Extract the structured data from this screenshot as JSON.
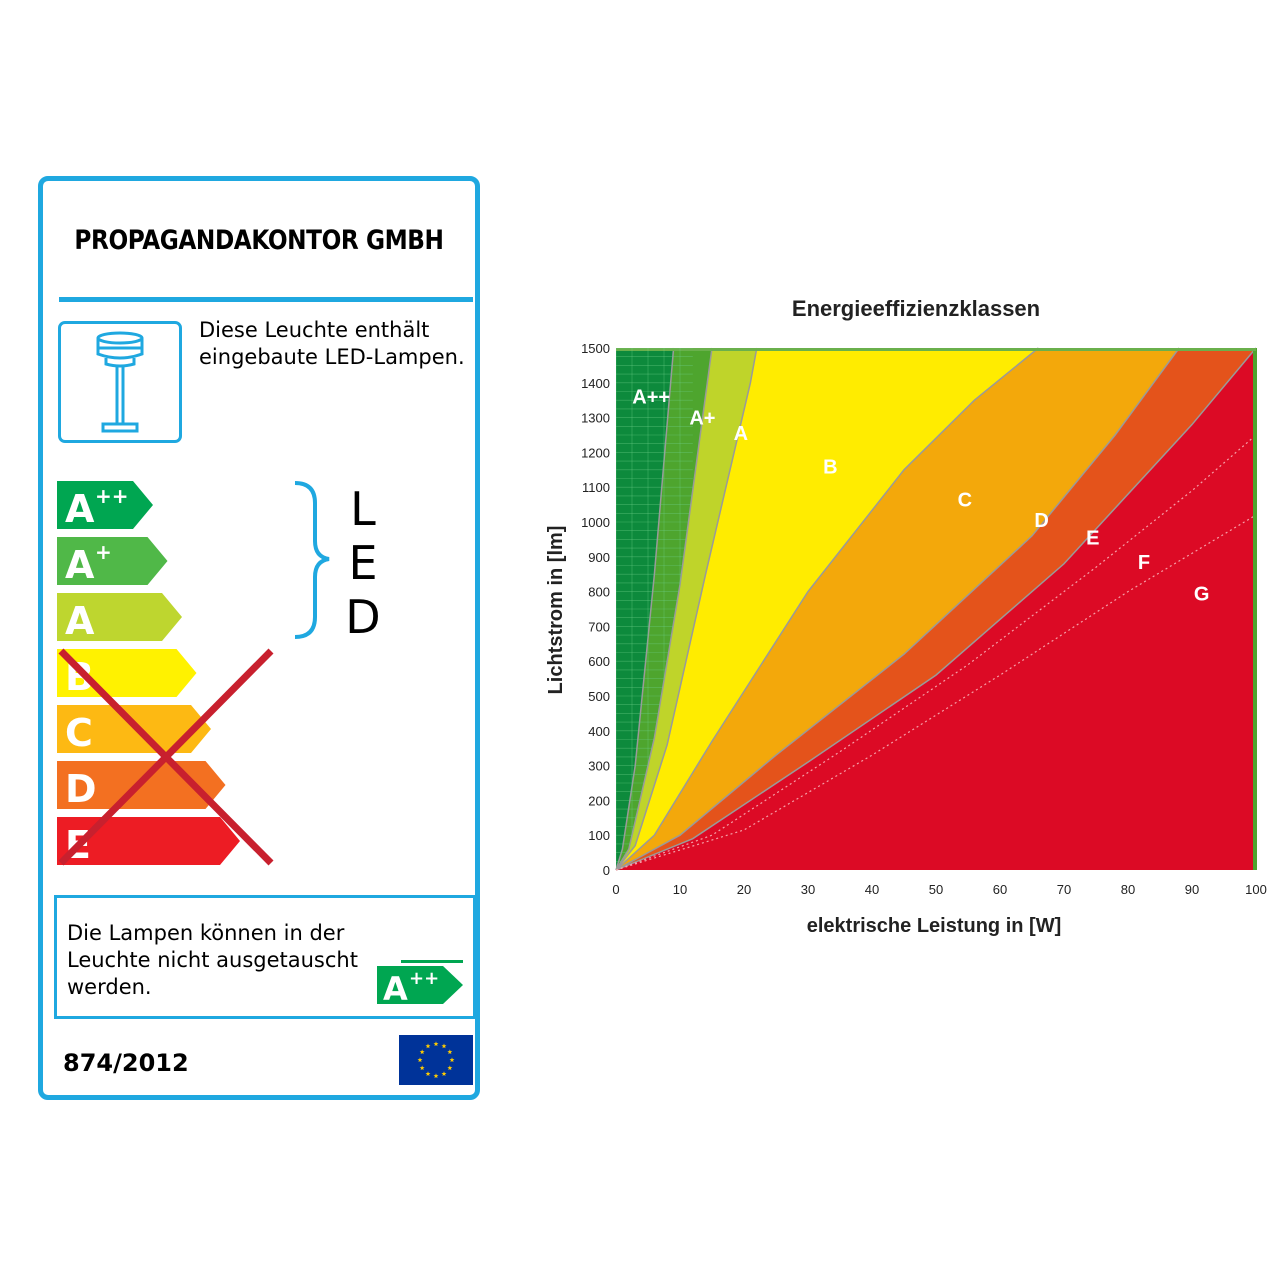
{
  "label": {
    "manufacturer": "PROPAGANDAKONTOR GMBH",
    "lamp_text_line1": "Diese Leuchte enthält",
    "lamp_text_line2": "eingebaute LED-Lampen.",
    "led_label": [
      "L",
      "E",
      "D"
    ],
    "classes": [
      {
        "letter": "A",
        "sup": "++",
        "color": "#00a651",
        "crossed": false
      },
      {
        "letter": "A",
        "sup": "+",
        "color": "#50b848",
        "crossed": false
      },
      {
        "letter": "A",
        "sup": "",
        "color": "#bed62f",
        "crossed": false
      },
      {
        "letter": "B",
        "sup": "",
        "color": "#fff200",
        "crossed": true
      },
      {
        "letter": "C",
        "sup": "",
        "color": "#fdb913",
        "crossed": true
      },
      {
        "letter": "D",
        "sup": "",
        "color": "#f37021",
        "crossed": true
      },
      {
        "letter": "E",
        "sup": "",
        "color": "#ed1c24",
        "crossed": true
      }
    ],
    "note_line1": "Die Lampen können in der",
    "note_line2": "Leuchte nicht ausgetauscht",
    "note_line3": "werden.",
    "note_badge": {
      "letter": "A",
      "sup": "++",
      "color": "#00a651"
    },
    "regulation": "874/2012",
    "colors": {
      "border": "#1fa8e0",
      "cross": "#c8202e",
      "eu_blue": "#003399",
      "eu_star": "#ffcc00"
    }
  },
  "chart_data": {
    "type": "area",
    "title": "Energieeffizienzklassen",
    "xlabel": "elektrische Leistung in [W]",
    "ylabel": "Lichtstrom in [lm]",
    "xlim": [
      0,
      100
    ],
    "ylim": [
      0,
      1500
    ],
    "xticks": [
      0,
      10,
      20,
      30,
      40,
      50,
      60,
      70,
      80,
      90,
      100
    ],
    "yticks": [
      0,
      100,
      200,
      300,
      400,
      500,
      600,
      700,
      800,
      900,
      1000,
      1100,
      1200,
      1300,
      1400,
      1500
    ],
    "series": [
      {
        "name": "A++",
        "color": "#0d8a3c",
        "boundary": [
          [
            0,
            0
          ],
          [
            1,
            60
          ],
          [
            3,
            300
          ],
          [
            6,
            850
          ],
          [
            9,
            1500
          ]
        ],
        "label_at": [
          5.5,
          1340
        ]
      },
      {
        "name": "A+",
        "color": "#4ea52e",
        "boundary": [
          [
            0,
            0
          ],
          [
            2,
            60
          ],
          [
            6,
            380
          ],
          [
            10,
            820
          ],
          [
            15,
            1500
          ]
        ],
        "label_at": [
          13.5,
          1280
        ]
      },
      {
        "name": "A",
        "color": "#bfd42a",
        "boundary": [
          [
            0,
            0
          ],
          [
            3,
            70
          ],
          [
            8,
            360
          ],
          [
            14,
            850
          ],
          [
            21,
            1400
          ],
          [
            22,
            1500
          ]
        ],
        "label_at": [
          19.5,
          1235
        ]
      },
      {
        "name": "B",
        "color": "#ffec00",
        "boundary": [
          [
            0,
            0
          ],
          [
            6,
            100
          ],
          [
            15,
            370
          ],
          [
            30,
            800
          ],
          [
            45,
            1150
          ],
          [
            56,
            1350
          ],
          [
            66,
            1500
          ]
        ],
        "label_at": [
          33.5,
          1140
        ]
      },
      {
        "name": "C",
        "color": "#f3a80b",
        "boundary": [
          [
            0,
            0
          ],
          [
            10,
            100
          ],
          [
            25,
            330
          ],
          [
            45,
            620
          ],
          [
            65,
            960
          ],
          [
            78,
            1250
          ],
          [
            88,
            1500
          ]
        ],
        "label_at": [
          54.5,
          1045
        ]
      },
      {
        "name": "D",
        "color": "#e4531b",
        "boundary": [
          [
            0,
            0
          ],
          [
            12,
            90
          ],
          [
            30,
            310
          ],
          [
            50,
            560
          ],
          [
            70,
            880
          ],
          [
            90,
            1280
          ],
          [
            100,
            1500
          ]
        ],
        "label_at": [
          66.5,
          985
        ]
      },
      {
        "name": "E",
        "color": "#dc0a25",
        "boundary": [
          [
            0,
            0
          ],
          [
            15,
            100
          ],
          [
            35,
            340
          ],
          [
            55,
            590
          ],
          [
            75,
            870
          ],
          [
            90,
            1090
          ],
          [
            100,
            1250
          ]
        ],
        "label_at": [
          74.5,
          935
        ]
      },
      {
        "name": "F",
        "color": "#dc0a25",
        "boundary": [
          [
            0,
            0
          ],
          [
            20,
            115
          ],
          [
            40,
            330
          ],
          [
            60,
            560
          ],
          [
            80,
            800
          ],
          [
            100,
            1020
          ]
        ],
        "label_at": [
          82.5,
          865
        ]
      },
      {
        "name": "G",
        "color": "#dc0a25",
        "boundary": [
          [
            0,
            0
          ],
          [
            100,
            0
          ]
        ],
        "label_at": [
          91.5,
          775
        ]
      }
    ]
  }
}
